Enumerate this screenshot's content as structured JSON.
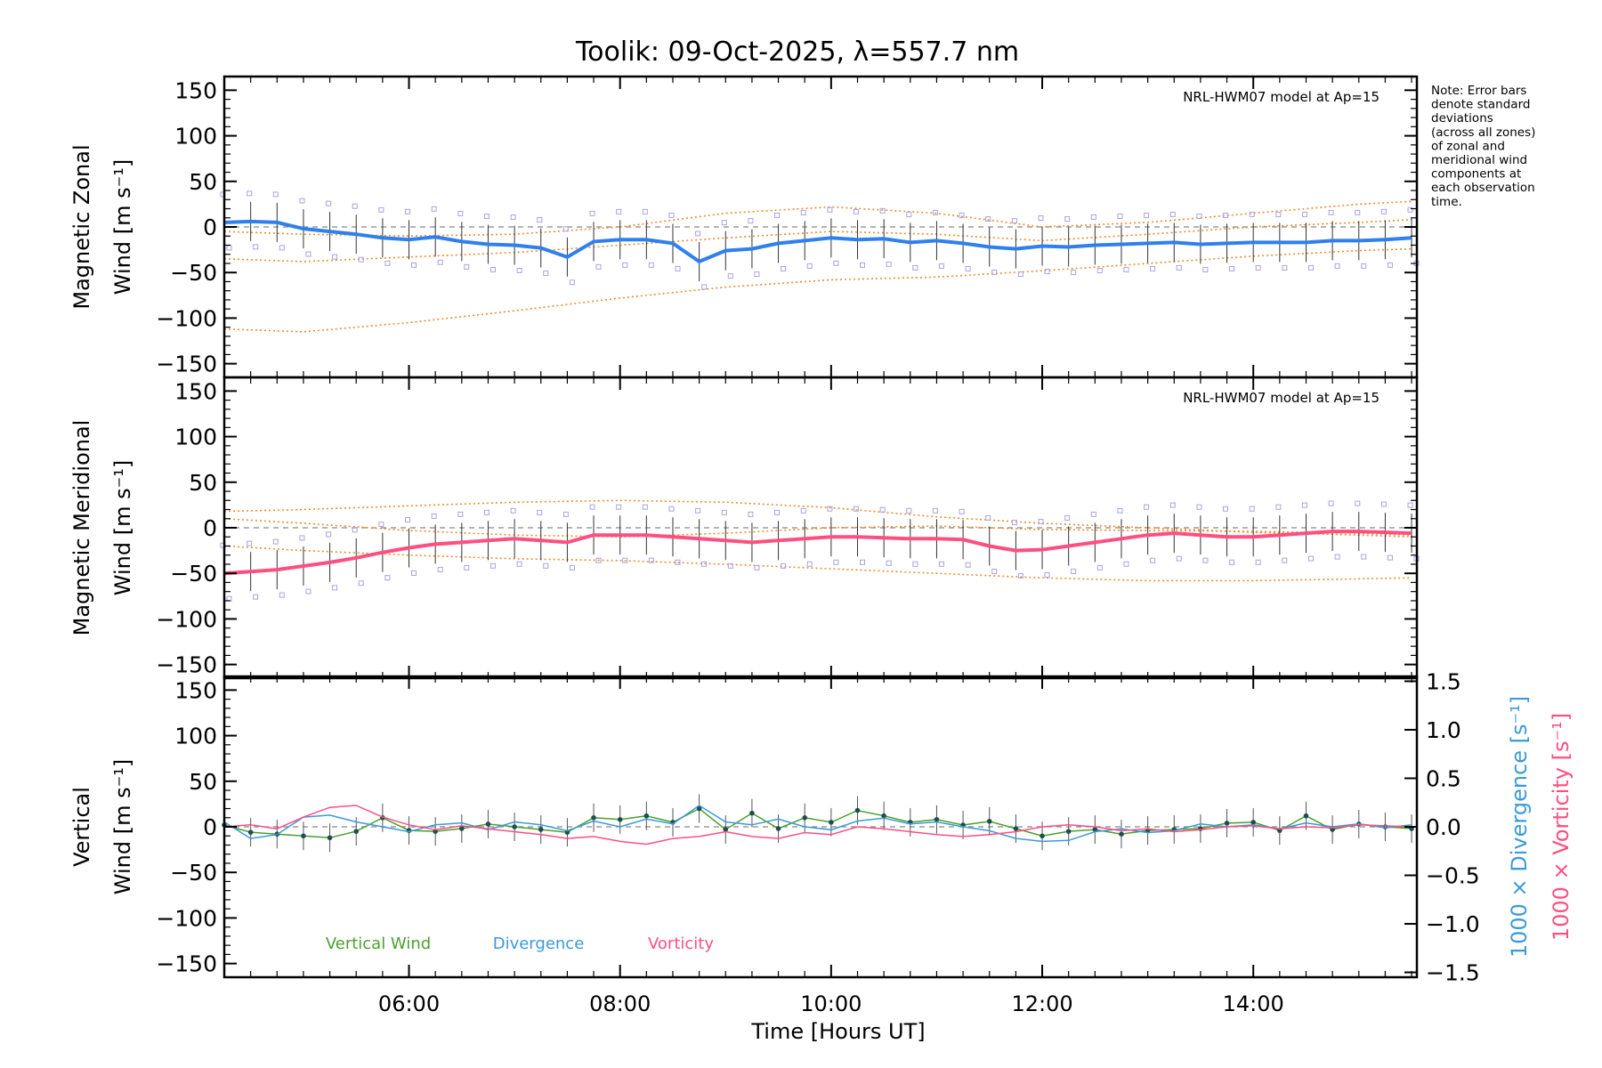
{
  "chart_data": {
    "type": "line",
    "title": "Toolik: 09-Oct-2025, λ=557.7 nm",
    "xlabel": "Time [Hours UT]",
    "xlim": [
      4.25,
      15.55
    ],
    "xticks": [
      {
        "value": 6,
        "label": "06:00"
      },
      {
        "value": 8,
        "label": "08:00"
      },
      {
        "value": 10,
        "label": "10:00"
      },
      {
        "value": 12,
        "label": "12:00"
      },
      {
        "value": 14,
        "label": "14:00"
      }
    ],
    "y_ticks": [
      150,
      100,
      50,
      0,
      -50,
      -100,
      -150
    ],
    "note_lines": [
      "Note: Error bars",
      "denote standard",
      "deviations",
      "(across all zones)",
      "of zonal and",
      "meridional wind",
      "components at",
      "each observation",
      "time."
    ],
    "panels": [
      {
        "id": "zonal",
        "ylabel_line1": "Magnetic Zonal",
        "ylabel_line2": "Wind [m s⁻¹]",
        "ylim": [
          -165,
          165
        ],
        "model_label": "NRL-HWM07 model at Ap=15",
        "series": [
          {
            "name": "Zonal wind",
            "color": "#2f80ed",
            "x": [
              4.25,
              4.5,
              4.75,
              5.0,
              5.25,
              5.5,
              5.75,
              6.0,
              6.25,
              6.5,
              6.75,
              7.0,
              7.25,
              7.5,
              7.75,
              8.0,
              8.25,
              8.5,
              8.75,
              9.0,
              9.25,
              9.5,
              9.75,
              10.0,
              10.25,
              10.5,
              10.75,
              11.0,
              11.25,
              11.5,
              11.75,
              12.0,
              12.25,
              12.5,
              12.75,
              13.0,
              13.25,
              13.5,
              13.75,
              14.0,
              14.25,
              14.5,
              14.75,
              15.0,
              15.25,
              15.5
            ],
            "y": [
              5,
              6,
              5,
              -2,
              -5,
              -8,
              -12,
              -14,
              -11,
              -16,
              -19,
              -20,
              -23,
              -33,
              -16,
              -14,
              -14,
              -18,
              -38,
              -26,
              -24,
              -18,
              -15,
              -12,
              -14,
              -13,
              -17,
              -15,
              -18,
              -22,
              -24,
              -21,
              -22,
              -20,
              -19,
              -18,
              -17,
              -19,
              -18,
              -17,
              -17,
              -17,
              -15,
              -15,
              -14,
              -12
            ]
          }
        ],
        "model_curves": [
          {
            "name": "model upper",
            "x": [
              4.25,
              5.0,
              6.0,
              7.0,
              8.0,
              9.0,
              10.0,
              11.0,
              12.0,
              13.0,
              14.0,
              15.0,
              15.5
            ],
            "y": [
              -5,
              -8,
              -10,
              -8,
              0,
              15,
              22,
              15,
              0,
              5,
              15,
              25,
              28
            ]
          },
          {
            "name": "model middle",
            "x": [
              4.25,
              5.0,
              6.0,
              7.0,
              8.0,
              9.0,
              10.0,
              11.0,
              12.0,
              13.0,
              14.0,
              15.0,
              15.5
            ],
            "y": [
              -35,
              -38,
              -33,
              -28,
              -20,
              -12,
              -5,
              -8,
              -15,
              -8,
              0,
              5,
              8
            ]
          },
          {
            "name": "model lower",
            "x": [
              4.25,
              5.0,
              6.0,
              7.0,
              8.0,
              9.0,
              10.0,
              11.0,
              12.0,
              13.0,
              14.0,
              15.0,
              15.5
            ],
            "y": [
              -112,
              -115,
              -105,
              -92,
              -78,
              -66,
              -58,
              -55,
              -48,
              -40,
              -32,
              -26,
              -24
            ]
          }
        ]
      },
      {
        "id": "meridional",
        "ylabel_line1": "Magnetic Meridional",
        "ylabel_line2": "Wind [m s⁻¹]",
        "ylim": [
          -165,
          165
        ],
        "model_label": "NRL-HWM07 model at Ap=15",
        "series": [
          {
            "name": "Meridional wind",
            "color": "#ff4f81",
            "x": [
              4.25,
              4.5,
              4.75,
              5.0,
              5.25,
              5.5,
              5.75,
              6.0,
              6.25,
              6.5,
              6.75,
              7.0,
              7.25,
              7.5,
              7.75,
              8.0,
              8.25,
              8.5,
              8.75,
              9.0,
              9.25,
              9.5,
              9.75,
              10.0,
              10.25,
              10.5,
              10.75,
              11.0,
              11.25,
              11.5,
              11.75,
              12.0,
              12.25,
              12.5,
              12.75,
              13.0,
              13.25,
              13.5,
              13.75,
              14.0,
              14.25,
              14.5,
              14.75,
              15.0,
              15.25,
              15.5
            ],
            "y": [
              -50,
              -48,
              -46,
              -42,
              -38,
              -33,
              -27,
              -22,
              -18,
              -16,
              -14,
              -12,
              -14,
              -16,
              -8,
              -8,
              -8,
              -10,
              -12,
              -14,
              -16,
              -14,
              -12,
              -10,
              -10,
              -11,
              -12,
              -12,
              -13,
              -20,
              -25,
              -24,
              -20,
              -16,
              -12,
              -8,
              -6,
              -8,
              -10,
              -10,
              -8,
              -6,
              -4,
              -4,
              -5,
              -6
            ]
          }
        ],
        "model_curves": [
          {
            "name": "model upper",
            "x": [
              4.25,
              5.0,
              6.0,
              7.0,
              8.0,
              9.0,
              10.0,
              11.0,
              12.0,
              13.0,
              14.0,
              15.0,
              15.5
            ],
            "y": [
              18,
              20,
              24,
              28,
              30,
              28,
              22,
              12,
              5,
              0,
              -5,
              -8,
              -10
            ]
          },
          {
            "name": "model middle",
            "x": [
              4.25,
              5.0,
              6.0,
              7.0,
              8.0,
              9.0,
              10.0,
              11.0,
              12.0,
              13.0,
              14.0,
              15.0,
              15.5
            ],
            "y": [
              10,
              5,
              -3,
              -8,
              -10,
              -6,
              0,
              2,
              -2,
              -3,
              -4,
              -6,
              -8
            ]
          },
          {
            "name": "model lower",
            "x": [
              4.25,
              5.0,
              6.0,
              7.0,
              8.0,
              9.0,
              10.0,
              11.0,
              12.0,
              13.0,
              14.0,
              15.0,
              15.5
            ],
            "y": [
              -20,
              -25,
              -30,
              -34,
              -36,
              -40,
              -45,
              -50,
              -55,
              -58,
              -58,
              -56,
              -55
            ]
          }
        ]
      },
      {
        "id": "vertical",
        "ylabel_line1": "Vertical",
        "ylabel_line2": "Wind [m s⁻¹]",
        "ylim": [
          -165,
          165
        ],
        "y2lim": [
          -1.55,
          1.55
        ],
        "y2_ticks": [
          1.5,
          1.0,
          0.5,
          0.0,
          -0.5,
          -1.0,
          -1.5
        ],
        "y2label_divergence": "1000 × Divergence [s⁻¹]",
        "y2label_vorticity": "1000 × Vorticity [s⁻¹]",
        "legend": [
          {
            "label": "Vertical Wind",
            "color": "#4aa02c"
          },
          {
            "label": "Divergence",
            "color": "#3b9ad9"
          },
          {
            "label": "Vorticity",
            "color": "#ff4f81"
          }
        ],
        "series": [
          {
            "name": "Vertical Wind",
            "color": "#4aa02c",
            "x": [
              4.25,
              4.5,
              4.75,
              5.0,
              5.25,
              5.5,
              5.75,
              6.0,
              6.25,
              6.5,
              6.75,
              7.0,
              7.25,
              7.5,
              7.75,
              8.0,
              8.25,
              8.5,
              8.75,
              9.0,
              9.25,
              9.5,
              9.75,
              10.0,
              10.25,
              10.5,
              10.75,
              11.0,
              11.25,
              11.5,
              11.75,
              12.0,
              12.25,
              12.5,
              12.75,
              13.0,
              13.25,
              13.5,
              13.75,
              14.0,
              14.25,
              14.5,
              14.75,
              15.0,
              15.25,
              15.5
            ],
            "y": [
              2,
              -6,
              -8,
              -10,
              -12,
              -5,
              10,
              -4,
              -5,
              -2,
              3,
              0,
              -3,
              -6,
              10,
              8,
              12,
              5,
              20,
              -3,
              15,
              -2,
              10,
              5,
              18,
              12,
              5,
              8,
              2,
              6,
              -2,
              -10,
              -5,
              -3,
              -8,
              -4,
              -3,
              -2,
              4,
              5,
              -4,
              12,
              -3,
              3,
              0,
              -2
            ]
          },
          {
            "name": "Divergence",
            "color": "#3b9ad9",
            "x": [
              4.25,
              4.5,
              4.75,
              5.0,
              5.25,
              5.5,
              5.75,
              6.0,
              6.25,
              6.5,
              6.75,
              7.0,
              7.25,
              7.5,
              7.75,
              8.0,
              8.25,
              8.5,
              8.75,
              9.0,
              9.25,
              9.5,
              9.75,
              10.0,
              10.25,
              10.5,
              10.75,
              11.0,
              11.25,
              11.5,
              11.75,
              12.0,
              12.25,
              12.5,
              12.75,
              13.0,
              13.25,
              13.5,
              13.75,
              14.0,
              14.25,
              14.5,
              14.75,
              15.0,
              15.25,
              15.5
            ],
            "y": [
              0.05,
              -0.12,
              -0.08,
              0.1,
              0.12,
              0.05,
              0.0,
              -0.05,
              0.02,
              0.04,
              -0.03,
              0.05,
              0.02,
              -0.04,
              0.06,
              0.0,
              0.08,
              0.03,
              0.22,
              0.05,
              0.02,
              0.08,
              0.0,
              -0.03,
              0.06,
              0.09,
              0.03,
              0.05,
              0.0,
              -0.04,
              -0.12,
              -0.15,
              -0.14,
              -0.05,
              -0.02,
              -0.06,
              -0.04,
              0.03,
              0.0,
              0.02,
              -0.02,
              0.04,
              0.0,
              0.03,
              -0.01,
              0.02
            ]
          },
          {
            "name": "Vorticity",
            "color": "#ff4f81",
            "x": [
              4.25,
              4.5,
              4.75,
              5.0,
              5.25,
              5.5,
              5.75,
              6.0,
              6.25,
              6.5,
              6.75,
              7.0,
              7.25,
              7.5,
              7.75,
              8.0,
              8.25,
              8.5,
              8.75,
              9.0,
              9.25,
              9.5,
              9.75,
              10.0,
              10.25,
              10.5,
              10.75,
              11.0,
              11.25,
              11.5,
              11.75,
              12.0,
              12.25,
              12.5,
              12.75,
              13.0,
              13.25,
              13.5,
              13.75,
              14.0,
              14.25,
              14.5,
              14.75,
              15.0,
              15.25,
              15.5
            ],
            "y": [
              0.0,
              0.02,
              -0.02,
              0.1,
              0.2,
              0.22,
              0.1,
              0.02,
              -0.03,
              0.01,
              -0.02,
              -0.05,
              -0.08,
              -0.12,
              -0.1,
              -0.15,
              -0.18,
              -0.12,
              -0.1,
              -0.05,
              -0.1,
              -0.12,
              -0.06,
              -0.08,
              0.0,
              -0.02,
              -0.05,
              -0.08,
              -0.1,
              -0.08,
              -0.05,
              0.0,
              0.02,
              0.0,
              -0.04,
              -0.02,
              -0.05,
              -0.03,
              0.0,
              0.01,
              -0.02,
              0.0,
              -0.01,
              0.02,
              0.01,
              0.0
            ]
          }
        ]
      }
    ]
  }
}
